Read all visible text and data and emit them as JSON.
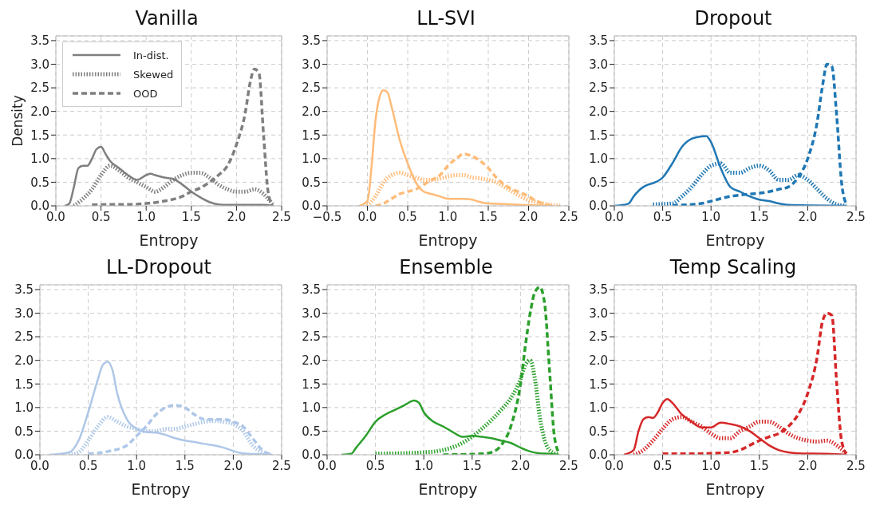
{
  "chart_data": [
    {
      "type": "line",
      "title": "Vanilla",
      "xlabel": "Entropy",
      "ylabel": "Density",
      "xlim": [
        0,
        2.5
      ],
      "xticks": [
        {
          "value": 0,
          "label": "0.0"
        },
        0.5,
        {
          "value": 1,
          "label": "1.0"
        },
        1.5,
        {
          "value": 2,
          "label": "2.0"
        },
        2.5
      ],
      "ylim": [
        0,
        3.6
      ],
      "yticks": [
        {
          "value": 0,
          "label": "0.0"
        },
        0.5,
        {
          "value": 1,
          "label": "1.0"
        },
        1.5,
        {
          "value": 2,
          "label": "2.0"
        },
        2.5,
        {
          "value": 3,
          "label": "3.0"
        },
        3.5
      ],
      "grid": true,
      "legend": "top left",
      "marker": "none",
      "series": [
        {
          "name": "In-dist.",
          "color": "#7f7f7f",
          "line_style": "solid",
          "x": [
            0.1,
            0.15,
            0.2,
            0.25,
            0.3,
            0.35,
            0.4,
            0.45,
            0.5,
            0.55,
            0.6,
            0.7,
            0.8,
            0.9,
            1.0,
            1.05,
            1.1,
            1.2,
            1.3,
            1.4,
            1.5,
            1.6,
            1.7,
            1.8,
            1.9,
            2.0,
            2.2,
            2.3,
            2.4
          ],
          "values": [
            0,
            0.05,
            0.4,
            0.8,
            0.85,
            0.85,
            1.0,
            1.2,
            1.25,
            1.1,
            0.95,
            0.8,
            0.65,
            0.55,
            0.65,
            0.68,
            0.65,
            0.6,
            0.57,
            0.45,
            0.3,
            0.18,
            0.08,
            0.03,
            0.02,
            0.02,
            0.02,
            0.02,
            0
          ]
        },
        {
          "name": "Skewed",
          "color": "#7f7f7f",
          "line_style": "dotted",
          "x": [
            0.2,
            0.3,
            0.4,
            0.5,
            0.6,
            0.7,
            0.8,
            0.9,
            1.0,
            1.1,
            1.2,
            1.3,
            1.4,
            1.5,
            1.6,
            1.7,
            1.8,
            1.9,
            2.0,
            2.1,
            2.2,
            2.3,
            2.4
          ],
          "values": [
            0,
            0.15,
            0.35,
            0.65,
            0.85,
            0.75,
            0.6,
            0.5,
            0.4,
            0.3,
            0.4,
            0.55,
            0.65,
            0.7,
            0.7,
            0.6,
            0.45,
            0.35,
            0.3,
            0.3,
            0.35,
            0.25,
            0.03
          ]
        },
        {
          "name": "OOD",
          "color": "#7f7f7f",
          "line_style": "dashed",
          "x": [
            0.4,
            0.6,
            0.8,
            1.0,
            1.2,
            1.4,
            1.5,
            1.6,
            1.7,
            1.8,
            1.9,
            2.0,
            2.1,
            2.15,
            2.2,
            2.25,
            2.3,
            2.35,
            2.4
          ],
          "values": [
            0.02,
            0.03,
            0.03,
            0.05,
            0.1,
            0.2,
            0.3,
            0.38,
            0.5,
            0.65,
            0.85,
            1.3,
            2.0,
            2.6,
            2.9,
            2.8,
            1.5,
            0.3,
            0
          ]
        }
      ]
    },
    {
      "type": "line",
      "title": "LL-SVI",
      "xlabel": "Entropy",
      "xlim": [
        -0.5,
        2.5
      ],
      "xticks": [
        {
          "value": -0.5,
          "label": "−0.5"
        },
        {
          "value": 0,
          "label": "0.0"
        },
        0.5,
        {
          "value": 1,
          "label": "1.0"
        },
        1.5,
        {
          "value": 2,
          "label": "2.0"
        },
        2.5
      ],
      "ylim": [
        0,
        3.6
      ],
      "yticks": [
        {
          "value": 0,
          "label": "0.0"
        },
        0.5,
        {
          "value": 1,
          "label": "1.0"
        },
        1.5,
        {
          "value": 2,
          "label": "2.0"
        },
        2.5,
        {
          "value": 3,
          "label": "3.0"
        },
        3.5
      ],
      "grid": true,
      "marker": "none",
      "series": [
        {
          "color": "#ffbb78",
          "line_style": "solid",
          "x": [
            -0.1,
            0.0,
            0.05,
            0.1,
            0.15,
            0.2,
            0.25,
            0.3,
            0.4,
            0.5,
            0.6,
            0.7,
            0.8,
            0.9,
            1.0,
            1.1,
            1.2,
            1.3,
            1.4,
            1.5,
            1.7,
            1.9,
            2.1,
            2.3
          ],
          "values": [
            0,
            0.1,
            0.8,
            1.8,
            2.3,
            2.45,
            2.4,
            2.1,
            1.4,
            0.9,
            0.5,
            0.3,
            0.25,
            0.2,
            0.15,
            0.15,
            0.15,
            0.13,
            0.08,
            0.05,
            0.04,
            0.02,
            0.01,
            0
          ]
        },
        {
          "color": "#ffbb78",
          "line_style": "dotted",
          "x": [
            0.0,
            0.1,
            0.2,
            0.3,
            0.4,
            0.5,
            0.6,
            0.7,
            0.8,
            0.9,
            1.0,
            1.1,
            1.2,
            1.3,
            1.4,
            1.5,
            1.6,
            1.7,
            1.8,
            1.9,
            2.0,
            2.1,
            2.2,
            2.4
          ],
          "values": [
            0,
            0.2,
            0.5,
            0.65,
            0.7,
            0.65,
            0.6,
            0.55,
            0.55,
            0.58,
            0.62,
            0.65,
            0.65,
            0.6,
            0.58,
            0.55,
            0.5,
            0.4,
            0.3,
            0.2,
            0.12,
            0.08,
            0.04,
            0
          ]
        },
        {
          "color": "#ffbb78",
          "line_style": "dashed",
          "x": [
            0.1,
            0.2,
            0.3,
            0.4,
            0.5,
            0.6,
            0.7,
            0.8,
            0.9,
            1.0,
            1.1,
            1.2,
            1.3,
            1.4,
            1.5,
            1.6,
            1.7,
            1.8,
            1.9,
            2.0,
            2.1,
            2.2,
            2.3
          ],
          "values": [
            0,
            0.05,
            0.15,
            0.25,
            0.3,
            0.35,
            0.45,
            0.55,
            0.65,
            0.85,
            1.0,
            1.1,
            1.05,
            0.95,
            0.8,
            0.6,
            0.45,
            0.35,
            0.28,
            0.2,
            0.1,
            0.03,
            0
          ]
        }
      ]
    },
    {
      "type": "line",
      "title": "Dropout",
      "xlabel": "Entropy",
      "xlim": [
        0,
        2.5
      ],
      "xticks": [
        {
          "value": 0,
          "label": "0.0"
        },
        0.5,
        {
          "value": 1,
          "label": "1.0"
        },
        1.5,
        {
          "value": 2,
          "label": "2.0"
        },
        2.5
      ],
      "ylim": [
        0,
        3.6
      ],
      "yticks": [
        {
          "value": 0,
          "label": "0.0"
        },
        0.5,
        {
          "value": 1,
          "label": "1.0"
        },
        1.5,
        {
          "value": 2,
          "label": "2.0"
        },
        2.5,
        {
          "value": 3,
          "label": "3.0"
        },
        3.5
      ],
      "grid": true,
      "marker": "none",
      "series": [
        {
          "color": "#1f77b4",
          "line_style": "solid",
          "x": [
            0.0,
            0.1,
            0.15,
            0.2,
            0.3,
            0.35,
            0.4,
            0.5,
            0.6,
            0.7,
            0.8,
            0.9,
            0.95,
            1.0,
            1.1,
            1.2,
            1.3,
            1.4,
            1.5,
            1.6,
            1.7,
            1.8,
            2.0,
            2.4
          ],
          "values": [
            0,
            0.02,
            0.05,
            0.2,
            0.4,
            0.45,
            0.48,
            0.6,
            0.9,
            1.25,
            1.42,
            1.47,
            1.48,
            1.35,
            0.8,
            0.4,
            0.3,
            0.2,
            0.13,
            0.1,
            0.05,
            0.02,
            0.01,
            0
          ]
        },
        {
          "color": "#1f77b4",
          "line_style": "dotted",
          "x": [
            0.4,
            0.6,
            0.7,
            0.8,
            0.9,
            1.0,
            1.1,
            1.2,
            1.3,
            1.4,
            1.5,
            1.6,
            1.7,
            1.8,
            1.9,
            2.0,
            2.1,
            2.2,
            2.3,
            2.4
          ],
          "values": [
            0.03,
            0.05,
            0.2,
            0.4,
            0.65,
            0.85,
            0.9,
            0.7,
            0.7,
            0.8,
            0.85,
            0.75,
            0.55,
            0.55,
            0.65,
            0.55,
            0.35,
            0.15,
            0.03,
            0
          ]
        },
        {
          "color": "#1f77b4",
          "line_style": "dashed",
          "x": [
            0.6,
            0.9,
            1.0,
            1.2,
            1.4,
            1.6,
            1.7,
            1.8,
            1.9,
            2.0,
            2.1,
            2.15,
            2.2,
            2.25,
            2.3,
            2.35,
            2.4
          ],
          "values": [
            0.01,
            0.05,
            0.1,
            0.2,
            0.25,
            0.3,
            0.35,
            0.4,
            0.6,
            1.0,
            1.8,
            2.5,
            3.0,
            2.95,
            1.9,
            0.5,
            0.03
          ]
        }
      ]
    },
    {
      "type": "line",
      "title": "LL-Dropout",
      "xlabel": "Entropy",
      "xlim": [
        0,
        2.5
      ],
      "xticks": [
        {
          "value": 0,
          "label": "0.0"
        },
        0.5,
        {
          "value": 1,
          "label": "1.0"
        },
        1.5,
        {
          "value": 2,
          "label": "2.0"
        },
        2.5
      ],
      "ylim": [
        0,
        3.6
      ],
      "yticks": [
        {
          "value": 0,
          "label": "0.0"
        },
        0.5,
        {
          "value": 1,
          "label": "1.0"
        },
        1.5,
        {
          "value": 2,
          "label": "2.0"
        },
        2.5,
        {
          "value": 3,
          "label": "3.0"
        },
        3.5
      ],
      "grid": true,
      "marker": "none",
      "series": [
        {
          "color": "#aec7e8",
          "line_style": "solid",
          "x": [
            0.1,
            0.3,
            0.4,
            0.5,
            0.6,
            0.65,
            0.7,
            0.75,
            0.8,
            0.9,
            1.0,
            1.1,
            1.2,
            1.3,
            1.4,
            1.5,
            1.6,
            1.7,
            1.8,
            1.9,
            2.0,
            2.1,
            2.3,
            2.4
          ],
          "values": [
            0,
            0.05,
            0.3,
            0.9,
            1.6,
            1.9,
            1.97,
            1.8,
            1.3,
            0.75,
            0.55,
            0.48,
            0.47,
            0.42,
            0.35,
            0.3,
            0.27,
            0.23,
            0.2,
            0.15,
            0.08,
            0.03,
            0.01,
            0
          ]
        },
        {
          "color": "#aec7e8",
          "line_style": "dotted",
          "x": [
            0.3,
            0.4,
            0.5,
            0.6,
            0.7,
            0.8,
            0.9,
            1.0,
            1.1,
            1.2,
            1.3,
            1.4,
            1.5,
            1.6,
            1.7,
            1.8,
            1.9,
            2.0,
            2.1,
            2.2,
            2.3,
            2.4
          ],
          "values": [
            0,
            0.05,
            0.3,
            0.6,
            0.8,
            0.7,
            0.6,
            0.55,
            0.5,
            0.5,
            0.55,
            0.55,
            0.6,
            0.65,
            0.7,
            0.72,
            0.7,
            0.65,
            0.5,
            0.2,
            0.05,
            0
          ]
        },
        {
          "color": "#aec7e8",
          "line_style": "dashed",
          "x": [
            0.5,
            0.7,
            0.9,
            1.0,
            1.1,
            1.2,
            1.3,
            1.4,
            1.5,
            1.6,
            1.7,
            1.8,
            1.9,
            2.0,
            2.1,
            2.2,
            2.3,
            2.4
          ],
          "values": [
            0.02,
            0.07,
            0.2,
            0.4,
            0.6,
            0.85,
            1.0,
            1.05,
            1.0,
            0.85,
            0.75,
            0.75,
            0.75,
            0.7,
            0.6,
            0.35,
            0.1,
            0
          ]
        }
      ]
    },
    {
      "type": "line",
      "title": "Ensemble",
      "xlabel": "Entropy",
      "xlim": [
        0,
        2.5
      ],
      "xticks": [
        {
          "value": 0,
          "label": "0.0"
        },
        0.5,
        {
          "value": 1,
          "label": "1.0"
        },
        1.5,
        {
          "value": 2,
          "label": "2.0"
        },
        2.5
      ],
      "ylim": [
        0,
        3.6
      ],
      "yticks": [
        {
          "value": 0,
          "label": "0.0"
        },
        0.5,
        {
          "value": 1,
          "label": "1.0"
        },
        1.5,
        {
          "value": 2,
          "label": "2.0"
        },
        2.5,
        {
          "value": 3,
          "label": "3.0"
        },
        3.5
      ],
      "grid": true,
      "marker": "none",
      "series": [
        {
          "color": "#2ca02c",
          "line_style": "solid",
          "x": [
            0.15,
            0.25,
            0.3,
            0.4,
            0.5,
            0.6,
            0.7,
            0.8,
            0.9,
            0.95,
            1.0,
            1.1,
            1.2,
            1.3,
            1.4,
            1.5,
            1.6,
            1.7,
            1.8,
            1.9,
            2.0,
            2.1,
            2.2,
            2.3,
            2.4
          ],
          "values": [
            0,
            0.02,
            0.15,
            0.4,
            0.7,
            0.85,
            0.95,
            1.05,
            1.15,
            1.1,
            0.9,
            0.7,
            0.6,
            0.48,
            0.38,
            0.4,
            0.38,
            0.35,
            0.3,
            0.25,
            0.15,
            0.07,
            0.03,
            0.02,
            0
          ]
        },
        {
          "color": "#2ca02c",
          "line_style": "dotted",
          "x": [
            0.5,
            1.0,
            1.2,
            1.4,
            1.6,
            1.8,
            1.9,
            2.0,
            2.05,
            2.1,
            2.15,
            2.2,
            2.3,
            2.4
          ],
          "values": [
            0.02,
            0.05,
            0.1,
            0.25,
            0.55,
            0.95,
            1.2,
            1.6,
            1.9,
            2.0,
            1.6,
            0.8,
            0.1,
            0
          ]
        },
        {
          "color": "#2ca02c",
          "line_style": "dashed",
          "x": [
            1.2,
            1.6,
            1.7,
            1.8,
            1.9,
            2.0,
            2.05,
            2.1,
            2.15,
            2.2,
            2.25,
            2.3,
            2.35,
            2.4
          ],
          "values": [
            0,
            0.02,
            0.05,
            0.2,
            0.6,
            1.5,
            2.3,
            3.0,
            3.45,
            3.55,
            3.2,
            1.8,
            0.4,
            0.03
          ]
        }
      ]
    },
    {
      "type": "line",
      "title": "Temp Scaling",
      "xlabel": "Entropy",
      "xlim": [
        0,
        2.5
      ],
      "xticks": [
        {
          "value": 0,
          "label": "0.0"
        },
        0.5,
        {
          "value": 1,
          "label": "1.0"
        },
        1.5,
        {
          "value": 2,
          "label": "2.0"
        },
        2.5
      ],
      "ylim": [
        0,
        3.6
      ],
      "yticks": [
        {
          "value": 0,
          "label": "0.0"
        },
        0.5,
        {
          "value": 1,
          "label": "1.0"
        },
        1.5,
        {
          "value": 2,
          "label": "2.0"
        },
        2.5,
        {
          "value": 3,
          "label": "3.0"
        },
        3.5
      ],
      "grid": true,
      "marker": "none",
      "series": [
        {
          "color": "#d62728",
          "line_style": "solid",
          "x": [
            0.1,
            0.2,
            0.25,
            0.3,
            0.35,
            0.4,
            0.45,
            0.5,
            0.55,
            0.6,
            0.7,
            0.8,
            0.9,
            1.0,
            1.1,
            1.2,
            1.3,
            1.4,
            1.5,
            1.6,
            1.7,
            1.8,
            1.9,
            2.2,
            2.4
          ],
          "values": [
            0,
            0.1,
            0.5,
            0.75,
            0.8,
            0.78,
            0.9,
            1.1,
            1.18,
            1.1,
            0.85,
            0.7,
            0.58,
            0.58,
            0.68,
            0.65,
            0.6,
            0.5,
            0.35,
            0.2,
            0.1,
            0.05,
            0.03,
            0.02,
            0
          ]
        },
        {
          "color": "#d62728",
          "line_style": "dotted",
          "x": [
            0.2,
            0.3,
            0.4,
            0.5,
            0.6,
            0.7,
            0.8,
            0.9,
            1.0,
            1.1,
            1.2,
            1.3,
            1.4,
            1.5,
            1.6,
            1.7,
            1.8,
            1.9,
            2.0,
            2.1,
            2.2,
            2.3,
            2.4
          ],
          "values": [
            0,
            0.1,
            0.3,
            0.55,
            0.75,
            0.8,
            0.7,
            0.6,
            0.45,
            0.35,
            0.35,
            0.5,
            0.6,
            0.7,
            0.7,
            0.6,
            0.45,
            0.35,
            0.3,
            0.28,
            0.3,
            0.2,
            0.02
          ]
        },
        {
          "color": "#d62728",
          "line_style": "dashed",
          "x": [
            0.5,
            0.8,
            1.0,
            1.2,
            1.3,
            1.4,
            1.5,
            1.6,
            1.7,
            1.8,
            1.9,
            2.0,
            2.1,
            2.15,
            2.2,
            2.25,
            2.3,
            2.35,
            2.4
          ],
          "values": [
            0.02,
            0.02,
            0.03,
            0.05,
            0.1,
            0.2,
            0.3,
            0.38,
            0.45,
            0.6,
            0.85,
            1.3,
            2.1,
            2.8,
            3.0,
            2.95,
            1.5,
            0.3,
            0.02
          ]
        }
      ]
    }
  ]
}
